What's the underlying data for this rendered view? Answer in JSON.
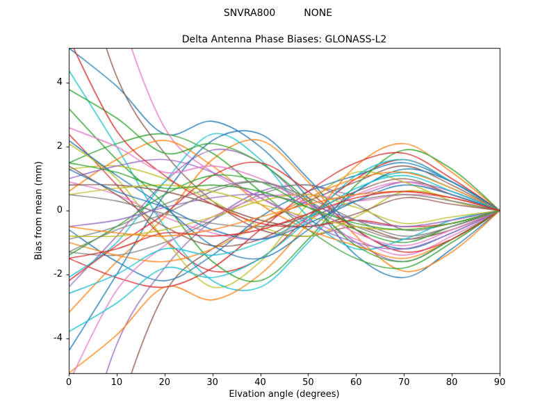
{
  "chart_data": {
    "type": "line",
    "suptitle_left": "SNVRA800",
    "suptitle_right": "NONE",
    "title": "Delta Antenna Phase Biases: GLONASS-L2",
    "xlabel": "Elvation angle (degrees)",
    "ylabel": "Bias from mean (mm)",
    "xlim": [
      0,
      90
    ],
    "ylim": [
      -5.1,
      5.1
    ],
    "xticks": [
      0,
      10,
      20,
      30,
      40,
      50,
      60,
      70,
      80,
      90
    ],
    "yticks": [
      -4,
      -2,
      0,
      2,
      4
    ],
    "grid": false,
    "legend": false,
    "palette": [
      "#1f77b4",
      "#ff7f0e",
      "#2ca02c",
      "#d62728",
      "#9467bd",
      "#8c564b",
      "#e377c2",
      "#7f7f7f",
      "#bcbd22",
      "#17becf"
    ],
    "x": [
      0,
      10,
      20,
      30,
      40,
      50,
      60,
      70,
      80,
      90
    ],
    "series": [
      {
        "values": [
          5.1,
          3.9,
          2.4,
          2.8,
          2.0,
          0.4,
          -1.4,
          -2.1,
          -1.2,
          0
        ]
      },
      {
        "values": [
          -3.2,
          -1.6,
          -0.2,
          1.6,
          2.2,
          0.9,
          -0.8,
          -1.9,
          -1.3,
          0
        ]
      },
      {
        "values": [
          1.5,
          2.1,
          2.4,
          1.8,
          0.6,
          -0.6,
          -1.5,
          -1.8,
          -1.0,
          0
        ]
      },
      {
        "values": [
          2.4,
          0.8,
          -0.9,
          -1.9,
          -1.5,
          -0.2,
          1.0,
          1.6,
          0.9,
          0
        ]
      },
      {
        "values": [
          -9.0,
          -4.2,
          -1.8,
          -0.3,
          0.6,
          0.8,
          0.5,
          0.9,
          0.6,
          0
        ]
      },
      {
        "values": [
          -12.0,
          -6.5,
          -2.6,
          -1.2,
          -0.4,
          0.3,
          0.9,
          1.4,
          0.8,
          0
        ]
      },
      {
        "values": [
          0.9,
          0.5,
          -0.2,
          -0.7,
          -0.9,
          -0.3,
          0.5,
          0.9,
          0.5,
          0
        ]
      },
      {
        "values": [
          -1.3,
          -1.4,
          -1.0,
          -0.3,
          0.5,
          0.8,
          0.2,
          -0.6,
          -0.4,
          0
        ]
      },
      {
        "values": [
          2.1,
          1.0,
          -0.9,
          -2.4,
          -1.6,
          0.2,
          1.2,
          0.9,
          0.3,
          0
        ]
      },
      {
        "values": [
          4.4,
          2.0,
          -0.5,
          -2.2,
          -2.4,
          -1.0,
          0.6,
          1.2,
          0.7,
          0
        ]
      },
      {
        "values": [
          -0.6,
          -1.6,
          -2.2,
          -1.4,
          -0.2,
          0.6,
          1.1,
          1.5,
          0.9,
          0
        ]
      },
      {
        "values": [
          -5.1,
          -3.9,
          -2.4,
          -2.8,
          -2.0,
          -0.4,
          1.4,
          2.1,
          1.2,
          0
        ]
      },
      {
        "values": [
          3.2,
          1.6,
          0.2,
          -1.6,
          -2.2,
          -0.9,
          0.8,
          1.9,
          1.3,
          0
        ]
      },
      {
        "values": [
          -1.5,
          -2.1,
          -2.4,
          -1.8,
          -0.6,
          0.6,
          1.5,
          1.8,
          1.0,
          0
        ]
      },
      {
        "values": [
          -2.4,
          -0.8,
          0.9,
          1.9,
          1.5,
          0.2,
          -1.0,
          -1.6,
          -0.9,
          0
        ]
      },
      {
        "values": [
          9.0,
          4.2,
          1.8,
          0.3,
          -0.6,
          -0.8,
          -0.5,
          -0.9,
          -0.6,
          0
        ]
      },
      {
        "values": [
          12.0,
          6.5,
          2.6,
          1.2,
          0.4,
          -0.3,
          -0.9,
          -1.4,
          -0.8,
          0
        ]
      },
      {
        "values": [
          -0.9,
          -0.5,
          0.2,
          0.7,
          0.9,
          0.3,
          -0.5,
          -0.9,
          -0.5,
          0
        ]
      },
      {
        "values": [
          1.3,
          1.4,
          1.0,
          0.3,
          -0.5,
          -0.8,
          -0.2,
          0.6,
          0.4,
          0
        ]
      },
      {
        "values": [
          -2.1,
          -1.0,
          0.9,
          2.4,
          1.6,
          -0.2,
          -1.2,
          -0.9,
          -0.3,
          0
        ]
      },
      {
        "values": [
          -4.4,
          -2.0,
          0.5,
          2.2,
          2.4,
          1.0,
          -0.6,
          -1.2,
          -0.7,
          0
        ]
      },
      {
        "values": [
          0.6,
          1.6,
          2.2,
          1.4,
          0.2,
          -0.6,
          -1.1,
          -1.5,
          -0.9,
          0
        ]
      },
      {
        "values": [
          3.8,
          2.9,
          1.8,
          2.1,
          1.5,
          0.3,
          -1.1,
          -1.6,
          -0.9,
          0
        ]
      },
      {
        "values": [
          -2.2,
          -1.1,
          -0.1,
          1.1,
          1.5,
          0.6,
          -0.6,
          -1.3,
          -0.9,
          0
        ]
      },
      {
        "values": [
          1.0,
          1.4,
          1.6,
          1.2,
          0.4,
          -0.4,
          -1.0,
          -1.2,
          -0.7,
          0
        ]
      },
      {
        "values": [
          1.4,
          0.5,
          -0.5,
          -1.1,
          -0.9,
          -0.1,
          0.6,
          1.0,
          0.5,
          0
        ]
      },
      {
        "values": [
          -5.4,
          -2.5,
          -1.1,
          -0.2,
          0.4,
          0.5,
          0.3,
          0.5,
          0.4,
          0
        ]
      },
      {
        "values": [
          0.5,
          0.3,
          -0.1,
          -0.4,
          -0.5,
          -0.2,
          0.3,
          0.5,
          0.3,
          0
        ]
      },
      {
        "values": [
          -0.8,
          -0.8,
          -0.6,
          -0.2,
          0.3,
          0.5,
          0.1,
          -0.4,
          -0.2,
          0
        ]
      },
      {
        "values": [
          -3.8,
          -2.9,
          -1.8,
          -2.1,
          -1.5,
          -0.3,
          1.1,
          1.6,
          0.9,
          0
        ]
      },
      {
        "values": [
          2.2,
          1.1,
          0.1,
          -1.1,
          -1.5,
          -0.6,
          0.6,
          1.3,
          0.9,
          0
        ]
      },
      {
        "values": [
          -1.0,
          -1.4,
          -1.6,
          -1.2,
          -0.4,
          0.4,
          1.0,
          1.2,
          0.7,
          0
        ]
      },
      {
        "values": [
          -1.4,
          -0.5,
          0.5,
          1.1,
          0.9,
          0.1,
          -0.6,
          -1.0,
          -0.5,
          0
        ]
      },
      {
        "values": [
          5.4,
          2.5,
          1.1,
          0.2,
          -0.4,
          -0.5,
          -0.3,
          -0.5,
          -0.4,
          0
        ]
      },
      {
        "values": [
          -0.5,
          -0.3,
          0.1,
          0.4,
          0.5,
          0.2,
          -0.3,
          -0.5,
          -0.3,
          0
        ]
      },
      {
        "values": [
          0.8,
          0.8,
          0.6,
          0.2,
          -0.3,
          -0.5,
          -0.1,
          0.4,
          0.2,
          0
        ]
      },
      {
        "values": [
          2.6,
          2.0,
          1.2,
          1.4,
          1.0,
          0.2,
          -0.7,
          -1.1,
          -0.6,
          0
        ]
      },
      {
        "values": [
          -1.3,
          -0.6,
          -0.1,
          0.6,
          0.9,
          0.4,
          -0.3,
          -0.8,
          -0.5,
          0
        ]
      },
      {
        "values": [
          0.5,
          0.7,
          0.8,
          0.6,
          0.2,
          -0.2,
          -0.5,
          -0.6,
          -0.4,
          0
        ]
      },
      {
        "values": [
          -2.6,
          -2.0,
          -1.2,
          -1.4,
          -1.0,
          -0.2,
          0.7,
          1.1,
          0.6,
          0
        ]
      },
      {
        "values": [
          1.3,
          0.6,
          0.1,
          -0.6,
          -0.9,
          -0.4,
          0.3,
          0.8,
          0.5,
          0
        ]
      },
      {
        "values": [
          -0.5,
          -0.7,
          -0.8,
          -0.6,
          -0.2,
          0.2,
          0.5,
          0.6,
          0.4,
          0
        ]
      },
      {
        "values": [
          1.5,
          1.2,
          0.7,
          0.8,
          0.6,
          0.1,
          -0.4,
          -0.6,
          -0.4,
          0
        ]
      },
      {
        "values": [
          -1.5,
          -1.2,
          -0.7,
          -0.8,
          -0.6,
          -0.1,
          0.4,
          0.6,
          0.4,
          0
        ]
      }
    ]
  }
}
